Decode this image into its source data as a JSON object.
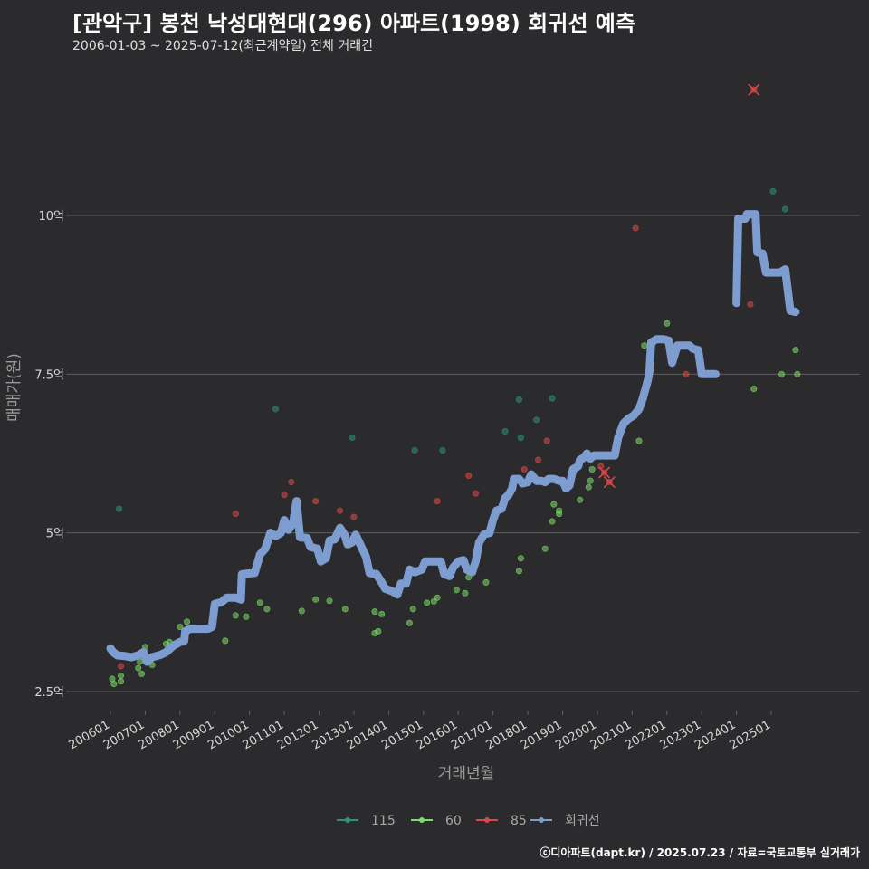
{
  "title": "[관악구] 봉천 낙성대현대(296) 아파트(1998) 회귀선 예측",
  "subtitle": "2006-01-03 ~ 2025-07-12(최근계약일) 전체 거래건",
  "footer": "ⓒ디아파트(dapt.kr) / 2025.07.23 / 자료=국토교통부 실거래가",
  "colors": {
    "background": "#2b2a2c",
    "grid": "#5e5e5e",
    "s115": "#2f8f7d",
    "s60": "#7ddc6a",
    "s85": "#d94848",
    "regression": "#7d9ccf"
  },
  "chart_data": {
    "type": "scatter",
    "xlabel": "거래년월",
    "ylabel": "매매가(원)",
    "xlim": [
      2005.8,
      2027.0
    ],
    "ylim": [
      2.3,
      12.3
    ],
    "y_ticks": [
      {
        "value": 2.5,
        "label": "2.5억"
      },
      {
        "value": 5,
        "label": "5억"
      },
      {
        "value": 7.5,
        "label": "7.5억"
      },
      {
        "value": 10,
        "label": "10억"
      }
    ],
    "x_ticks": [
      {
        "value": 2006,
        "label": "200601"
      },
      {
        "value": 2007,
        "label": "200701"
      },
      {
        "value": 2008,
        "label": "200801"
      },
      {
        "value": 2009,
        "label": "200901"
      },
      {
        "value": 2010,
        "label": "201001"
      },
      {
        "value": 2011,
        "label": "201101"
      },
      {
        "value": 2012,
        "label": "201201"
      },
      {
        "value": 2013,
        "label": "201301"
      },
      {
        "value": 2014,
        "label": "201401"
      },
      {
        "value": 2015,
        "label": "201501"
      },
      {
        "value": 2016,
        "label": "201601"
      },
      {
        "value": 2017,
        "label": "201701"
      },
      {
        "value": 2018,
        "label": "201801"
      },
      {
        "value": 2019,
        "label": "201901"
      },
      {
        "value": 2020,
        "label": "202001"
      },
      {
        "value": 2021,
        "label": "202101"
      },
      {
        "value": 2022,
        "label": "202201"
      },
      {
        "value": 2023,
        "label": "202301"
      },
      {
        "value": 2024,
        "label": "202401"
      },
      {
        "value": 2025,
        "label": "202501"
      }
    ],
    "legend": [
      {
        "name": "115",
        "color": "#2f8f7d"
      },
      {
        "name": "60",
        "color": "#7ddc6a"
      },
      {
        "name": "85",
        "color": "#d94848"
      },
      {
        "name": "회귀선",
        "color": "#7d9ccf"
      }
    ],
    "series": [
      {
        "name": "115",
        "points": [
          [
            2006.25,
            5.38
          ],
          [
            2010.75,
            6.95
          ],
          [
            2012.95,
            6.5
          ],
          [
            2014.75,
            6.3
          ],
          [
            2015.55,
            6.3
          ],
          [
            2017.35,
            6.6
          ],
          [
            2017.75,
            7.1
          ],
          [
            2018.25,
            6.78
          ],
          [
            2018.7,
            7.12
          ],
          [
            2017.8,
            6.5
          ],
          [
            2025.05,
            10.38
          ],
          [
            2025.4,
            10.1
          ]
        ]
      },
      {
        "name": "60",
        "points": [
          [
            2006.05,
            2.7
          ],
          [
            2006.1,
            2.62
          ],
          [
            2006.3,
            2.75
          ],
          [
            2006.3,
            2.66
          ],
          [
            2006.8,
            2.87
          ],
          [
            2006.85,
            2.97
          ],
          [
            2006.9,
            2.78
          ],
          [
            2007.0,
            3.2
          ],
          [
            2007.2,
            2.92
          ],
          [
            2007.6,
            3.25
          ],
          [
            2007.7,
            3.28
          ],
          [
            2008.0,
            3.52
          ],
          [
            2008.2,
            3.6
          ],
          [
            2009.3,
            3.3
          ],
          [
            2009.6,
            3.7
          ],
          [
            2009.9,
            3.68
          ],
          [
            2010.3,
            3.9
          ],
          [
            2010.5,
            3.8
          ],
          [
            2011.5,
            3.77
          ],
          [
            2011.9,
            3.95
          ],
          [
            2012.3,
            3.93
          ],
          [
            2012.75,
            3.8
          ],
          [
            2013.6,
            3.76
          ],
          [
            2013.7,
            3.45
          ],
          [
            2013.8,
            3.72
          ],
          [
            2013.6,
            3.42
          ],
          [
            2014.6,
            3.58
          ],
          [
            2014.7,
            3.8
          ],
          [
            2015.1,
            3.9
          ],
          [
            2015.3,
            3.92
          ],
          [
            2015.4,
            3.98
          ],
          [
            2015.95,
            4.1
          ],
          [
            2016.2,
            4.05
          ],
          [
            2016.3,
            4.3
          ],
          [
            2016.8,
            4.22
          ],
          [
            2017.75,
            4.4
          ],
          [
            2017.8,
            4.6
          ],
          [
            2018.5,
            4.75
          ],
          [
            2018.7,
            5.18
          ],
          [
            2018.75,
            5.45
          ],
          [
            2018.9,
            5.35
          ],
          [
            2018.9,
            5.3
          ],
          [
            2019.5,
            5.52
          ],
          [
            2019.75,
            5.72
          ],
          [
            2019.8,
            5.82
          ],
          [
            2019.85,
            6.0
          ],
          [
            2020.5,
            6.3
          ],
          [
            2020.55,
            6.37
          ],
          [
            2021.2,
            6.45
          ],
          [
            2021.35,
            7.95
          ],
          [
            2022.0,
            8.3
          ],
          [
            2024.5,
            7.27
          ],
          [
            2025.3,
            7.5
          ],
          [
            2025.7,
            7.88
          ],
          [
            2025.75,
            7.5
          ]
        ]
      },
      {
        "name": "85",
        "points": [
          [
            2006.3,
            2.9
          ],
          [
            2009.6,
            5.3
          ],
          [
            2011.0,
            5.6
          ],
          [
            2011.2,
            5.8
          ],
          [
            2011.9,
            5.5
          ],
          [
            2012.6,
            5.35
          ],
          [
            2013.0,
            5.25
          ],
          [
            2015.4,
            5.5
          ],
          [
            2016.3,
            5.9
          ],
          [
            2016.5,
            5.62
          ],
          [
            2017.9,
            6.0
          ],
          [
            2018.3,
            6.15
          ],
          [
            2018.55,
            6.45
          ],
          [
            2020.1,
            6.05
          ],
          [
            2021.1,
            9.8
          ],
          [
            2022.55,
            7.5
          ],
          [
            2024.4,
            8.6
          ]
        ],
        "outliers": [
          [
            2020.2,
            5.95
          ],
          [
            2020.35,
            5.8
          ],
          [
            2024.5,
            11.98
          ]
        ]
      }
    ],
    "regression_segments": [
      [
        [
          2006.0,
          3.18
        ],
        [
          2006.08,
          3.12
        ],
        [
          2006.2,
          3.07
        ],
        [
          2006.4,
          3.06
        ],
        [
          2006.6,
          3.04
        ],
        [
          2006.8,
          3.07
        ],
        [
          2006.95,
          3.12
        ],
        [
          2007.05,
          2.97
        ],
        [
          2007.2,
          3.04
        ],
        [
          2007.45,
          3.08
        ],
        [
          2007.6,
          3.12
        ],
        [
          2007.8,
          3.22
        ],
        [
          2008.0,
          3.28
        ],
        [
          2008.12,
          3.3
        ],
        [
          2008.15,
          3.45
        ],
        [
          2008.3,
          3.49
        ],
        [
          2008.8,
          3.49
        ],
        [
          2008.92,
          3.52
        ],
        [
          2009.0,
          3.88
        ],
        [
          2009.2,
          3.91
        ],
        [
          2009.35,
          3.98
        ],
        [
          2009.6,
          3.98
        ],
        [
          2009.75,
          3.95
        ],
        [
          2009.78,
          4.35
        ],
        [
          2009.95,
          4.36
        ],
        [
          2010.15,
          4.37
        ],
        [
          2010.3,
          4.66
        ],
        [
          2010.45,
          4.75
        ],
        [
          2010.6,
          5.0
        ],
        [
          2010.75,
          4.95
        ],
        [
          2010.9,
          5.0
        ],
        [
          2011.0,
          5.2
        ],
        [
          2011.12,
          5.05
        ],
        [
          2011.25,
          5.15
        ],
        [
          2011.35,
          5.5
        ],
        [
          2011.45,
          4.93
        ],
        [
          2011.65,
          4.92
        ],
        [
          2011.75,
          4.78
        ],
        [
          2011.95,
          4.75
        ],
        [
          2012.05,
          4.55
        ],
        [
          2012.2,
          4.6
        ],
        [
          2012.3,
          4.88
        ],
        [
          2012.45,
          4.9
        ],
        [
          2012.6,
          5.08
        ],
        [
          2012.75,
          4.95
        ],
        [
          2012.82,
          4.82
        ],
        [
          2012.95,
          4.85
        ],
        [
          2013.05,
          4.97
        ],
        [
          2013.2,
          4.8
        ],
        [
          2013.35,
          4.62
        ],
        [
          2013.45,
          4.37
        ],
        [
          2013.65,
          4.35
        ],
        [
          2013.8,
          4.22
        ],
        [
          2013.9,
          4.12
        ],
        [
          2014.1,
          4.08
        ],
        [
          2014.25,
          4.03
        ],
        [
          2014.35,
          4.2
        ],
        [
          2014.5,
          4.2
        ],
        [
          2014.6,
          4.42
        ],
        [
          2014.75,
          4.38
        ],
        [
          2014.95,
          4.42
        ],
        [
          2015.05,
          4.55
        ],
        [
          2015.3,
          4.55
        ],
        [
          2015.5,
          4.55
        ],
        [
          2015.6,
          4.35
        ],
        [
          2015.75,
          4.32
        ],
        [
          2015.85,
          4.45
        ],
        [
          2016.0,
          4.55
        ],
        [
          2016.15,
          4.57
        ],
        [
          2016.25,
          4.42
        ],
        [
          2016.4,
          4.38
        ],
        [
          2016.5,
          4.55
        ],
        [
          2016.6,
          4.85
        ],
        [
          2016.75,
          4.98
        ],
        [
          2016.9,
          5.0
        ],
        [
          2017.0,
          5.2
        ],
        [
          2017.1,
          5.35
        ],
        [
          2017.25,
          5.38
        ],
        [
          2017.35,
          5.55
        ],
        [
          2017.45,
          5.6
        ],
        [
          2017.55,
          5.7
        ],
        [
          2017.6,
          5.85
        ],
        [
          2017.75,
          5.85
        ],
        [
          2017.85,
          5.78
        ],
        [
          2018.0,
          5.8
        ],
        [
          2018.1,
          5.92
        ],
        [
          2018.25,
          5.82
        ],
        [
          2018.4,
          5.82
        ],
        [
          2018.5,
          5.8
        ],
        [
          2018.6,
          5.85
        ],
        [
          2018.75,
          5.85
        ],
        [
          2018.9,
          5.82
        ],
        [
          2019.0,
          5.82
        ],
        [
          2019.1,
          5.7
        ],
        [
          2019.2,
          5.75
        ],
        [
          2019.3,
          6.0
        ],
        [
          2019.45,
          6.05
        ],
        [
          2019.5,
          6.15
        ],
        [
          2019.6,
          6.18
        ],
        [
          2019.7,
          6.25
        ],
        [
          2019.8,
          6.17
        ],
        [
          2019.9,
          6.22
        ],
        [
          2020.1,
          6.22
        ],
        [
          2020.3,
          6.22
        ],
        [
          2020.5,
          6.22
        ],
        [
          2020.6,
          6.5
        ],
        [
          2020.75,
          6.72
        ],
        [
          2020.9,
          6.8
        ],
        [
          2021.05,
          6.85
        ],
        [
          2021.2,
          6.95
        ],
        [
          2021.3,
          7.1
        ],
        [
          2021.45,
          7.4
        ],
        [
          2021.5,
          7.55
        ],
        [
          2021.55,
          8.0
        ],
        [
          2021.7,
          8.05
        ],
        [
          2021.9,
          8.05
        ],
        [
          2022.05,
          8.03
        ],
        [
          2022.15,
          7.68
        ],
        [
          2022.3,
          7.95
        ],
        [
          2022.5,
          7.95
        ],
        [
          2022.65,
          7.95
        ],
        [
          2022.75,
          7.9
        ],
        [
          2022.9,
          7.88
        ],
        [
          2023.0,
          7.5
        ],
        [
          2023.2,
          7.5
        ],
        [
          2023.4,
          7.5
        ]
      ],
      [
        [
          2024.0,
          8.62
        ],
        [
          2024.05,
          9.95
        ],
        [
          2024.25,
          9.95
        ],
        [
          2024.3,
          10.02
        ],
        [
          2024.55,
          10.02
        ],
        [
          2024.6,
          9.42
        ],
        [
          2024.75,
          9.4
        ],
        [
          2024.85,
          9.1
        ],
        [
          2025.05,
          9.1
        ],
        [
          2025.25,
          9.1
        ],
        [
          2025.4,
          9.15
        ],
        [
          2025.55,
          8.5
        ],
        [
          2025.7,
          8.48
        ]
      ]
    ]
  }
}
